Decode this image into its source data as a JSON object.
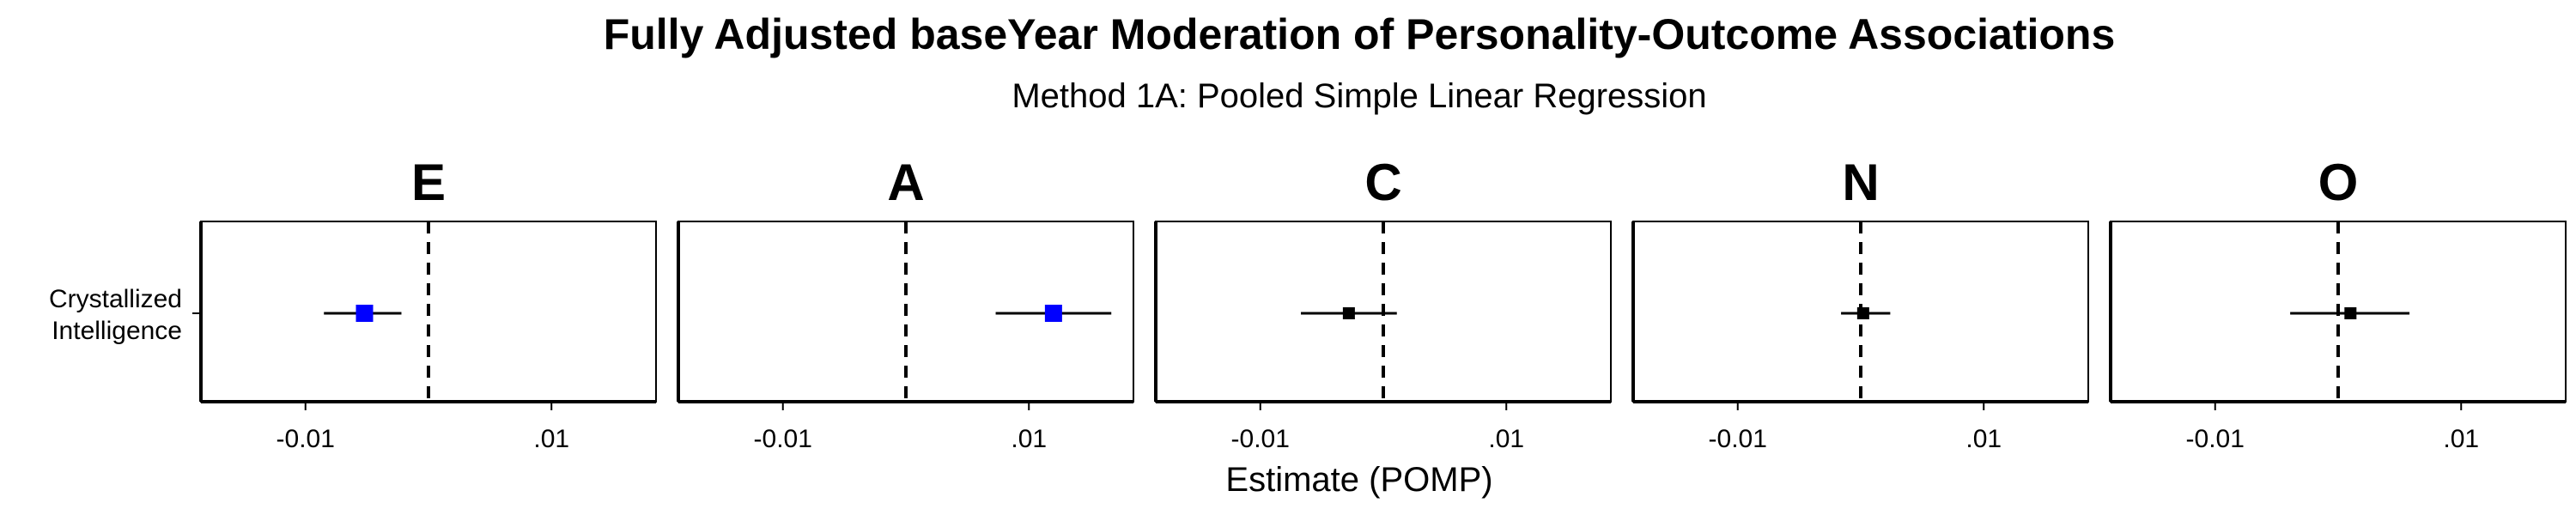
{
  "chart_data": {
    "type": "forest",
    "title": "Fully Adjusted baseYear Moderation of Personality-Outcome Associations",
    "subtitle": "Method 1A: Pooled Simple Linear Regression",
    "xlabel": "Estimate (POMP)",
    "xlim": [
      -0.0185,
      0.0185
    ],
    "x_ticks": [
      -0.01,
      0.01
    ],
    "x_tick_labels": [
      "-0.01",
      ".01"
    ],
    "reference_line": 0,
    "grid": false,
    "y_categories": [
      "Crystallized Intelligence"
    ],
    "y_category_lines": [
      "Crystallized",
      "Intelligence"
    ],
    "colors": {
      "significant": "#0000ff",
      "nonsignificant": "#000000"
    },
    "panels": [
      {
        "label": "E",
        "estimate": -0.0052,
        "lower": -0.0085,
        "upper": -0.0022,
        "significant": true
      },
      {
        "label": "A",
        "estimate": 0.012,
        "lower": 0.0073,
        "upper": 0.0167,
        "significant": true
      },
      {
        "label": "C",
        "estimate": -0.0028,
        "lower": -0.0067,
        "upper": 0.0011,
        "significant": false
      },
      {
        "label": "N",
        "estimate": 0.0002,
        "lower": -0.0016,
        "upper": 0.0024,
        "significant": false
      },
      {
        "label": "O",
        "estimate": 0.001,
        "lower": -0.0039,
        "upper": 0.0058,
        "significant": false
      }
    ]
  }
}
